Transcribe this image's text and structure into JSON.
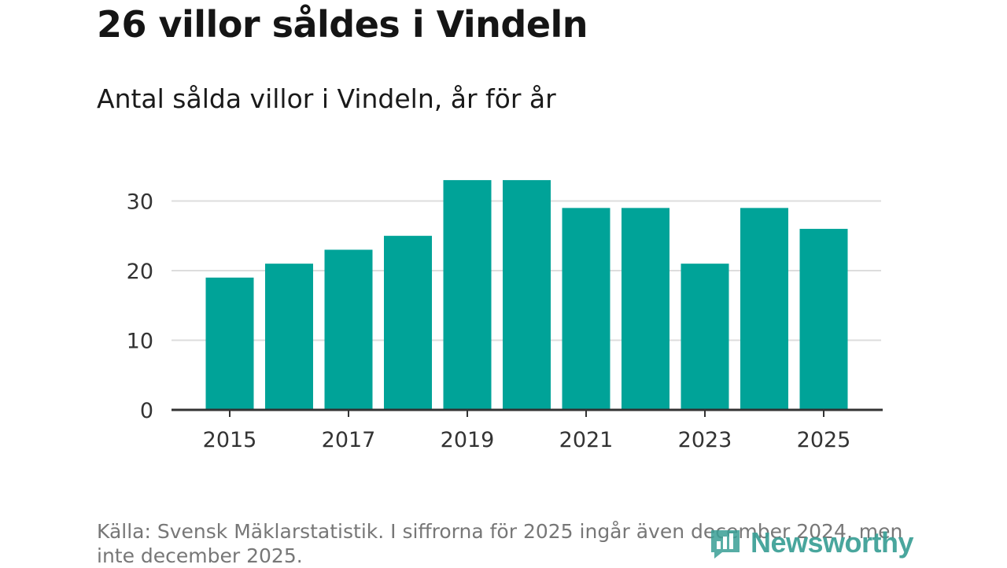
{
  "header": {
    "title": "26 villor såldes i Vindeln",
    "subtitle": "Antal sålda villor i Vindeln, år för år"
  },
  "footer": {
    "source": "Källa: Svensk Mäklarstatistik. I siffrorna för 2025 ingår även december 2024, men inte december 2025.",
    "logo_text": "Newsworthy"
  },
  "colors": {
    "bar": "#00a398",
    "grid": "#dddddd",
    "axis": "#333333",
    "logo": "#3a9f95"
  },
  "chart_data": {
    "type": "bar",
    "title": "Antal sålda villor i Vindeln, år för år",
    "xlabel": "",
    "ylabel": "",
    "categories": [
      "2015",
      "2016",
      "2017",
      "2018",
      "2019",
      "2020",
      "2021",
      "2022",
      "2023",
      "2024",
      "2025"
    ],
    "values": [
      19,
      21,
      23,
      25,
      33,
      33,
      29,
      29,
      21,
      29,
      26
    ],
    "ylim": [
      0,
      33
    ],
    "yticks": [
      0,
      10,
      20,
      30
    ],
    "xtick_labels": [
      "2015",
      "2017",
      "2019",
      "2021",
      "2023",
      "2025"
    ],
    "grid": true
  }
}
